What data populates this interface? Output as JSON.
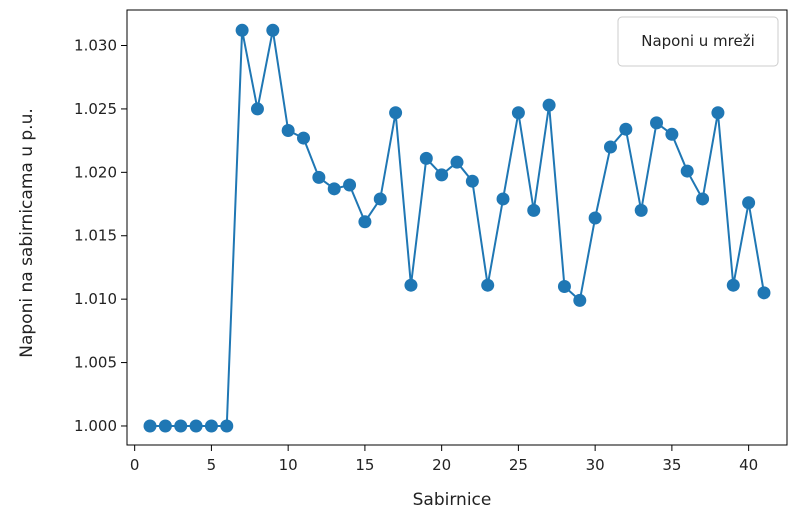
{
  "chart_data": {
    "type": "line",
    "title": "",
    "xlabel": "Sabirnice",
    "ylabel": "Naponi na sabirnicama u p.u.",
    "xlim": [
      -0.5,
      42.5
    ],
    "ylim": [
      0.9985,
      1.0328
    ],
    "xticks": [
      0,
      5,
      10,
      15,
      20,
      25,
      30,
      35,
      40
    ],
    "yticks": [
      1.0,
      1.005,
      1.01,
      1.015,
      1.02,
      1.025,
      1.03
    ],
    "ytick_labels": [
      "1.000",
      "1.005",
      "1.010",
      "1.015",
      "1.020",
      "1.025",
      "1.030"
    ],
    "grid": false,
    "legend_position": "top-right",
    "series": [
      {
        "name": "Naponi u mreži",
        "color": "#1f77b4",
        "marker": "circle",
        "x": [
          1,
          2,
          3,
          4,
          5,
          6,
          7,
          8,
          9,
          10,
          11,
          12,
          13,
          14,
          15,
          16,
          17,
          18,
          19,
          20,
          21,
          22,
          23,
          24,
          25,
          26,
          27,
          28,
          29,
          30,
          31,
          32,
          33,
          34,
          35,
          36,
          37,
          38,
          39,
          40,
          41
        ],
        "y": [
          1.0,
          1.0,
          1.0,
          1.0,
          1.0,
          1.0,
          1.0312,
          1.025,
          1.0312,
          1.0233,
          1.0227,
          1.0196,
          1.0187,
          1.019,
          1.0161,
          1.0179,
          1.0247,
          1.0111,
          1.0211,
          1.0198,
          1.0208,
          1.0193,
          1.0111,
          1.0179,
          1.0247,
          1.017,
          1.0253,
          1.011,
          1.0099,
          1.0164,
          1.022,
          1.0234,
          1.017,
          1.0239,
          1.023,
          1.0201,
          1.0179,
          1.0247,
          1.0111,
          1.0176,
          1.0105
        ]
      }
    ]
  }
}
